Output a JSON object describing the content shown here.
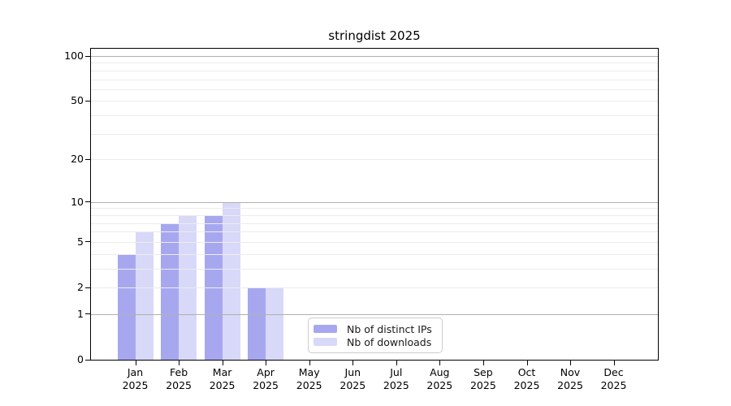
{
  "chart_data": {
    "type": "bar",
    "title": "stringdist 2025",
    "categories": [
      "Jan",
      "Feb",
      "Mar",
      "Apr",
      "May",
      "Jun",
      "Jul",
      "Aug",
      "Sep",
      "Oct",
      "Nov",
      "Dec"
    ],
    "category_year": "2025",
    "series": [
      {
        "name": "Nb of distinct IPs",
        "color": "#a7a7f0",
        "values": [
          4,
          7,
          8,
          2,
          0,
          0,
          0,
          0,
          0,
          0,
          0,
          0
        ]
      },
      {
        "name": "Nb of downloads",
        "color": "#d8d8f8",
        "values": [
          6,
          8,
          10,
          2,
          0,
          0,
          0,
          0,
          0,
          0,
          0,
          0
        ]
      }
    ],
    "y_axis": {
      "scale": "log10(value+1)",
      "tick_labels": [
        "100",
        "50",
        "20",
        "10",
        "5",
        "2",
        "1",
        "0"
      ],
      "ticks": [
        100,
        50,
        20,
        10,
        5,
        2,
        1,
        0
      ],
      "major_gridlines": [
        1,
        10,
        100
      ],
      "minor_gridlines": [
        2,
        3,
        4,
        5,
        6,
        7,
        8,
        9,
        20,
        30,
        40,
        50,
        60,
        70,
        80,
        90
      ],
      "ylim_bottom": 0,
      "ylim_top_approx": 112
    },
    "x_axis": {
      "tick_count": 12
    },
    "legend": {
      "position": "lower center",
      "entries": [
        "Nb of distinct IPs",
        "Nb of downloads"
      ]
    },
    "colors": {
      "major_grid": "#b0b0b0",
      "minor_grid": "#ececec",
      "spine": "#000000",
      "background": "#ffffff",
      "legend_border": "#cccccc"
    },
    "grid": true
  }
}
